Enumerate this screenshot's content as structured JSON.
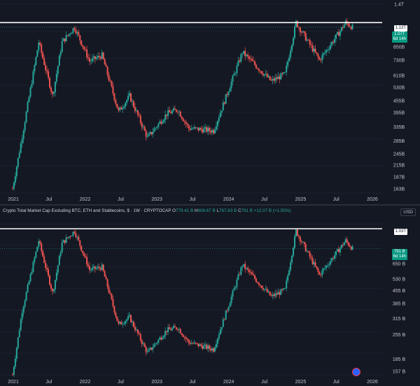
{
  "colors": {
    "up": "#26a69a",
    "down": "#ef5350",
    "background": "#141823",
    "resistance_line": "#ffffff"
  },
  "charts": {
    "top": {
      "resistance_label": "1.13T",
      "price_tag_value": "1.07T",
      "price_tag_time": "6d 14h",
      "y_ticks": [
        "1.4T",
        "850B",
        "730B",
        "610B",
        "530B",
        "455B",
        "395B",
        "335B",
        "285B",
        "245B",
        "215B",
        "187B",
        "163B"
      ],
      "x_ticks": [
        "2021",
        "Jul",
        "2022",
        "Jul",
        "2023",
        "Jul",
        "2024",
        "Jul",
        "2025",
        "Jul",
        "2026"
      ]
    },
    "bottom": {
      "title": "Crypto Total Market Cap Excluding BTC, ETH and Stablecoins, $ · 1W · CRYPTOCAP",
      "ohlc": {
        "o_label": "O",
        "o": "779.41 B",
        "h_label": "H",
        "h": "808.67 B",
        "l_label": "L",
        "l": "767.63 B",
        "c_label": "C",
        "c": "791 B",
        "change": "+12.07 B (+1.55%)"
      },
      "currency": "USD",
      "resistance_label": "1.03T",
      "price_tag_value": "791 B",
      "price_tag_time": "6d 14h",
      "y_ticks": [
        "650 B",
        "530 B",
        "455 B",
        "385 B",
        "315 B",
        "255 B",
        "185 B",
        "157 B"
      ],
      "x_ticks": [
        "2021",
        "Jul",
        "2022",
        "Jul",
        "2023",
        "Jul",
        "2024",
        "Jul",
        "2025",
        "Jul",
        "2026"
      ]
    }
  },
  "chart_data": [
    {
      "type": "candlestick",
      "interval": "1W",
      "x_range": [
        "2020-12",
        "2026-01"
      ],
      "y_scale": "log",
      "ylim": [
        155,
        1400
      ],
      "unit": "B USD",
      "resistance_level": 1130,
      "last_close": 1070,
      "anchors": [
        {
          "date": "2020-12-28",
          "value": 163
        },
        {
          "date": "2021-02-15",
          "value": 300
        },
        {
          "date": "2021-05-10",
          "value": 900
        },
        {
          "date": "2021-07-20",
          "value": 480
        },
        {
          "date": "2021-09-06",
          "value": 900
        },
        {
          "date": "2021-11-08",
          "value": 1070
        },
        {
          "date": "2022-01-24",
          "value": 720
        },
        {
          "date": "2022-03-28",
          "value": 770
        },
        {
          "date": "2022-06-20",
          "value": 400
        },
        {
          "date": "2022-08-15",
          "value": 480
        },
        {
          "date": "2022-11-14",
          "value": 295
        },
        {
          "date": "2023-02-20",
          "value": 390
        },
        {
          "date": "2023-04-17",
          "value": 410
        },
        {
          "date": "2023-06-12",
          "value": 330
        },
        {
          "date": "2023-10-16",
          "value": 320
        },
        {
          "date": "2024-03-11",
          "value": 800
        },
        {
          "date": "2024-08-05",
          "value": 570
        },
        {
          "date": "2024-10-14",
          "value": 620
        },
        {
          "date": "2024-12-09",
          "value": 1130
        },
        {
          "date": "2025-04-07",
          "value": 730
        },
        {
          "date": "2025-07-14",
          "value": 1000
        },
        {
          "date": "2025-08-18",
          "value": 1130
        },
        {
          "date": "2025-09-22",
          "value": 1070
        }
      ]
    },
    {
      "type": "candlestick",
      "title": "Crypto Total Market Cap Excluding BTC, ETH and Stablecoins, $ · 1W · CRYPTOCAP",
      "interval": "1W",
      "x_range": [
        "2020-12",
        "2026-01"
      ],
      "y_scale": "log",
      "ylim": [
        150,
        1100
      ],
      "unit": "B USD",
      "resistance_level": 1030,
      "last_close": 791,
      "anchors": [
        {
          "date": "2020-12-28",
          "value": 150
        },
        {
          "date": "2021-02-15",
          "value": 350
        },
        {
          "date": "2021-05-10",
          "value": 880
        },
        {
          "date": "2021-07-20",
          "value": 440
        },
        {
          "date": "2021-09-06",
          "value": 850
        },
        {
          "date": "2021-11-08",
          "value": 1000
        },
        {
          "date": "2022-01-24",
          "value": 600
        },
        {
          "date": "2022-03-28",
          "value": 620
        },
        {
          "date": "2022-06-20",
          "value": 290
        },
        {
          "date": "2022-08-15",
          "value": 320
        },
        {
          "date": "2022-11-14",
          "value": 200
        },
        {
          "date": "2023-02-20",
          "value": 270
        },
        {
          "date": "2023-04-17",
          "value": 280
        },
        {
          "date": "2023-06-12",
          "value": 230
        },
        {
          "date": "2023-10-16",
          "value": 210
        },
        {
          "date": "2024-03-11",
          "value": 640
        },
        {
          "date": "2024-08-05",
          "value": 420
        },
        {
          "date": "2024-10-14",
          "value": 460
        },
        {
          "date": "2024-12-09",
          "value": 1000
        },
        {
          "date": "2025-04-07",
          "value": 560
        },
        {
          "date": "2025-07-14",
          "value": 780
        },
        {
          "date": "2025-08-18",
          "value": 880
        },
        {
          "date": "2025-09-22",
          "value": 791
        }
      ]
    }
  ]
}
